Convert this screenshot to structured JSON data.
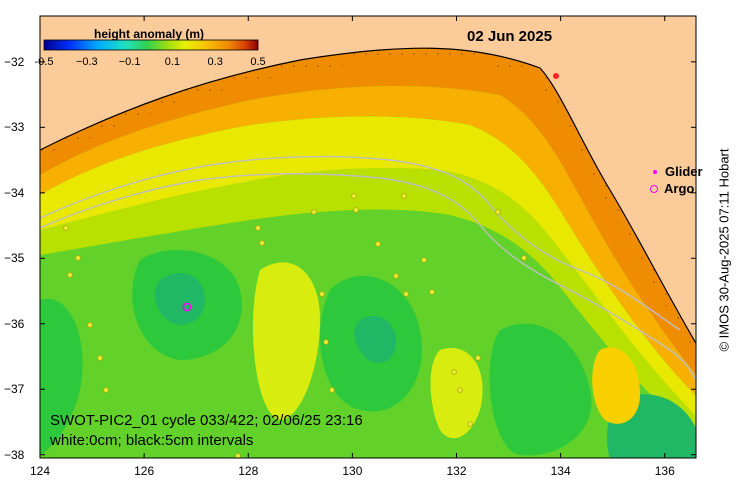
{
  "title": "02 Jun 2025",
  "colorbar": {
    "title": "height anomaly (m)",
    "tick_labels": [
      "-0.5",
      "−0.3",
      "−0.1",
      "0.1",
      "0.3",
      "0.5"
    ],
    "range": [
      -0.5,
      0.5
    ]
  },
  "axes": {
    "x_tick_labels": [
      "124",
      "126",
      "128",
      "130",
      "132",
      "134",
      "136"
    ],
    "y_tick_labels": [
      "−32",
      "−33",
      "−34",
      "−35",
      "−36",
      "−37",
      "−38"
    ],
    "x_range": [
      124,
      136.6
    ],
    "y_range": [
      -38.05,
      -31.3
    ]
  },
  "legend": {
    "glider_label": "Glider",
    "argo_label": "Argo",
    "glider_color": "#ff00ff",
    "argo_color": "#ff00ff"
  },
  "caption": {
    "line1": "SWOT-PIC2_01 cycle 033/422; 02/06/25 23:16",
    "line2": "white:0cm; black:5cm intervals"
  },
  "credit": "© IMOS 30-Aug-2025 07:11 Hobart",
  "colors": {
    "land": "#fccb9a",
    "coastline": "#000000",
    "isobath": "#bfbfbf",
    "anomaly_ramp": [
      "#00008f",
      "#0050ff",
      "#00c8ff",
      "#30e8a0",
      "#00c864",
      "#7ad820",
      "#e0f000",
      "#f5c800",
      "#f08c00",
      "#c83200",
      "#800000"
    ]
  },
  "argo_float": {
    "lon": 126.8,
    "lat": -35.7
  }
}
